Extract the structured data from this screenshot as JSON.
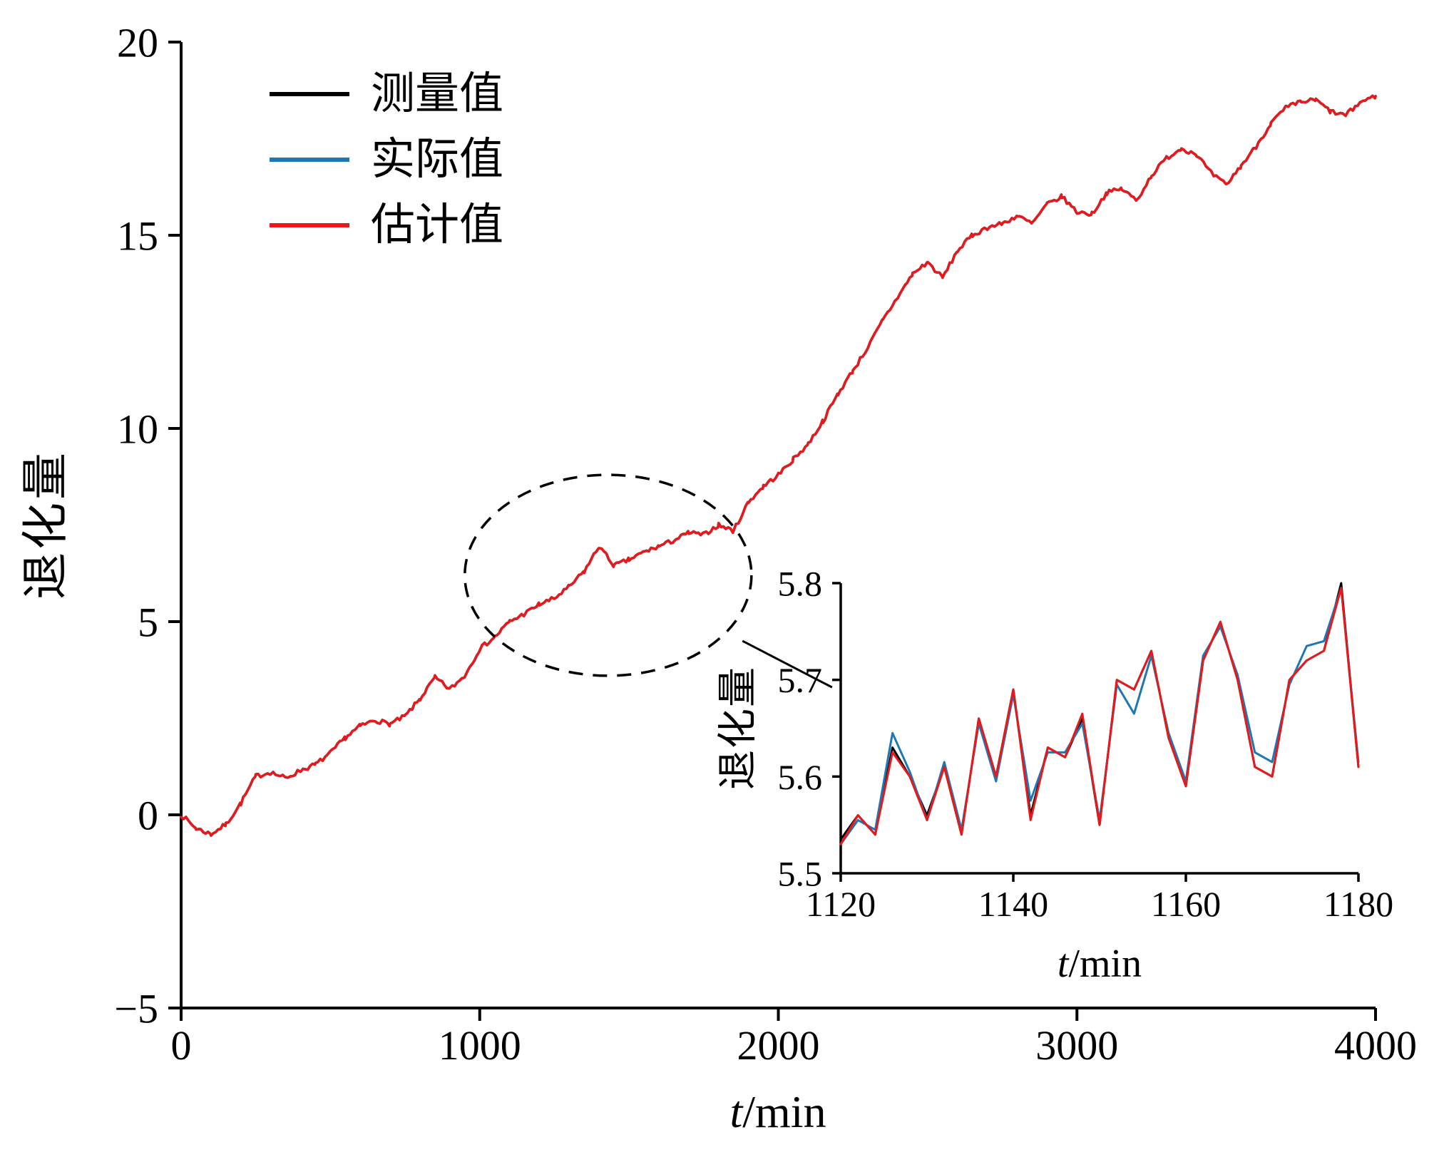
{
  "figure": {
    "background": "#ffffff",
    "legend": {
      "position": "upper-left",
      "items": [
        {
          "key": "measured",
          "label": "测量值",
          "color": "#000000"
        },
        {
          "key": "actual",
          "label": "实际值",
          "color": "#1d77b5"
        },
        {
          "key": "estimated",
          "label": "估计值",
          "color": "#e8191b"
        }
      ]
    }
  },
  "chart_data": [
    {
      "id": "main",
      "type": "line",
      "title": "",
      "xlabel": "t/min",
      "xlabel_var": "t",
      "xlabel_rest": "/min",
      "ylabel": "退化量",
      "xlim": [
        0,
        4000
      ],
      "ylim": [
        -5,
        20
      ],
      "xticks": [
        0,
        1000,
        2000,
        3000,
        4000
      ],
      "xtick_labels": [
        "0",
        "1000",
        "2000",
        "3000",
        "4000"
      ],
      "yticks": [
        -5,
        0,
        5,
        10,
        15,
        20
      ],
      "ytick_labels": [
        "−5",
        "0",
        "5",
        "10",
        "15",
        "20"
      ],
      "grid": false,
      "x": [
        0,
        50,
        100,
        150,
        200,
        250,
        300,
        350,
        400,
        450,
        500,
        550,
        600,
        650,
        700,
        750,
        800,
        850,
        900,
        950,
        1000,
        1050,
        1100,
        1150,
        1200,
        1250,
        1300,
        1350,
        1400,
        1450,
        1500,
        1550,
        1600,
        1650,
        1700,
        1750,
        1800,
        1850,
        1900,
        1950,
        2000,
        2050,
        2100,
        2150,
        2200,
        2250,
        2300,
        2350,
        2400,
        2450,
        2500,
        2550,
        2600,
        2650,
        2700,
        2750,
        2800,
        2850,
        2900,
        2950,
        3000,
        3050,
        3100,
        3150,
        3200,
        3250,
        3300,
        3350,
        3400,
        3450,
        3500,
        3550,
        3600,
        3650,
        3700,
        3750,
        3800,
        3850,
        3900,
        3950,
        4000
      ],
      "y": [
        0.0,
        -0.35,
        -0.5,
        -0.25,
        0.3,
        1.0,
        1.1,
        0.95,
        1.15,
        1.3,
        1.6,
        2.0,
        2.3,
        2.45,
        2.35,
        2.55,
        3.0,
        3.55,
        3.25,
        3.6,
        4.3,
        4.6,
        5.0,
        5.2,
        5.45,
        5.6,
        5.9,
        6.3,
        6.95,
        6.45,
        6.6,
        6.8,
        6.95,
        7.1,
        7.3,
        7.25,
        7.5,
        7.35,
        8.1,
        8.5,
        8.8,
        9.2,
        9.6,
        10.2,
        10.9,
        11.5,
        12.1,
        12.8,
        13.4,
        14.0,
        14.3,
        13.9,
        14.6,
        15.0,
        15.2,
        15.3,
        15.5,
        15.3,
        15.8,
        16.0,
        15.6,
        15.55,
        16.1,
        16.2,
        15.9,
        16.55,
        17.0,
        17.25,
        17.1,
        16.6,
        16.3,
        16.8,
        17.3,
        17.9,
        18.3,
        18.45,
        18.5,
        18.2,
        18.1,
        18.45,
        18.6
      ],
      "series": [
        {
          "key": "measured",
          "name": "测量值",
          "color": "#000000",
          "data": "shared"
        },
        {
          "key": "actual",
          "name": "实际值",
          "color": "#1d77b5",
          "data": "shared"
        },
        {
          "key": "estimated",
          "name": "估计值",
          "color": "#e8191b",
          "data": "shared"
        }
      ],
      "style": {
        "noise_amplitude": 0.06
      },
      "annotations": {
        "ellipse": {
          "cx": 1430,
          "cy": 6.2,
          "rx": 480,
          "ry": 2.6,
          "style": "dashed"
        },
        "callout_line": {
          "x1": 1880,
          "y1": 4.5,
          "x2": 2180,
          "y2": 3.3
        }
      }
    },
    {
      "id": "inset",
      "type": "line",
      "title": "",
      "xlabel": "t/min",
      "xlabel_var": "t",
      "xlabel_rest": "/min",
      "ylabel": "退化量",
      "xlim": [
        1120,
        1180
      ],
      "ylim": [
        5.5,
        5.8
      ],
      "xticks": [
        1120,
        1140,
        1160,
        1180
      ],
      "xtick_labels": [
        "1120",
        "1140",
        "1160",
        "1180"
      ],
      "yticks": [
        5.5,
        5.6,
        5.7,
        5.8
      ],
      "ytick_labels": [
        "5.5",
        "5.6",
        "5.7",
        "5.8"
      ],
      "grid": false,
      "x": [
        1120,
        1122,
        1124,
        1126,
        1128,
        1130,
        1132,
        1134,
        1136,
        1138,
        1140,
        1142,
        1144,
        1146,
        1148,
        1150,
        1152,
        1154,
        1156,
        1158,
        1160,
        1162,
        1164,
        1166,
        1168,
        1170,
        1172,
        1174,
        1176,
        1178,
        1180
      ],
      "series": [
        {
          "key": "measured",
          "name": "测量值",
          "color": "#000000",
          "y": [
            5.535,
            5.56,
            5.54,
            5.63,
            5.6,
            5.56,
            5.61,
            5.54,
            5.66,
            5.6,
            5.69,
            5.56,
            5.63,
            5.62,
            5.66,
            5.55,
            5.7,
            5.69,
            5.73,
            5.64,
            5.59,
            5.72,
            5.76,
            5.7,
            5.61,
            5.6,
            5.7,
            5.72,
            5.73,
            5.8,
            5.61
          ]
        },
        {
          "key": "actual",
          "name": "实际值",
          "color": "#1d77b5",
          "y": [
            5.53,
            5.555,
            5.545,
            5.645,
            5.605,
            5.555,
            5.615,
            5.545,
            5.655,
            5.595,
            5.685,
            5.575,
            5.625,
            5.625,
            5.655,
            5.555,
            5.695,
            5.665,
            5.725,
            5.645,
            5.595,
            5.725,
            5.755,
            5.705,
            5.625,
            5.615,
            5.695,
            5.735,
            5.74,
            5.795,
            5.615
          ]
        },
        {
          "key": "estimated",
          "name": "估计值",
          "color": "#e8191b",
          "y": [
            5.53,
            5.56,
            5.54,
            5.625,
            5.6,
            5.555,
            5.61,
            5.54,
            5.66,
            5.6,
            5.69,
            5.555,
            5.63,
            5.62,
            5.665,
            5.55,
            5.7,
            5.69,
            5.73,
            5.64,
            5.59,
            5.72,
            5.76,
            5.7,
            5.61,
            5.6,
            5.7,
            5.72,
            5.73,
            5.795,
            5.61
          ]
        }
      ]
    }
  ]
}
